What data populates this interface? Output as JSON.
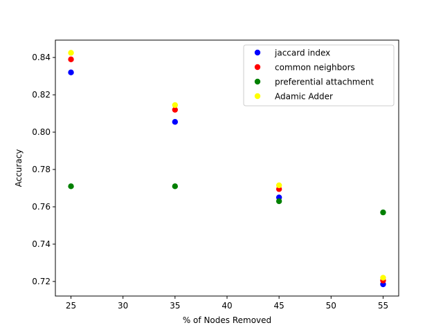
{
  "chart_data": {
    "type": "scatter",
    "title": "",
    "xlabel": "% of Nodes Removed",
    "ylabel": "Accuracy",
    "xlim": [
      23.5,
      56.5
    ],
    "ylim": [
      0.7122,
      0.8493
    ],
    "x_ticks": [
      25,
      30,
      35,
      40,
      45,
      50,
      55
    ],
    "y_ticks": [
      0.72,
      0.74,
      0.76,
      0.78,
      0.8,
      0.82,
      0.84
    ],
    "grid": false,
    "legend_position": "top-right",
    "series": [
      {
        "name": "jaccard index",
        "color": "#0000ff",
        "x": [
          25,
          35,
          45,
          55
        ],
        "y": [
          0.832,
          0.8055,
          0.765,
          0.7185
        ]
      },
      {
        "name": "common neighbors",
        "color": "#ff0000",
        "x": [
          25,
          35,
          45,
          55
        ],
        "y": [
          0.839,
          0.812,
          0.7695,
          0.7205
        ]
      },
      {
        "name": "preferential attachment",
        "color": "#008000",
        "x": [
          25,
          35,
          45,
          55
        ],
        "y": [
          0.771,
          0.771,
          0.763,
          0.757
        ]
      },
      {
        "name": "Adamic Adder",
        "color": "#ffff00",
        "x": [
          25,
          35,
          45,
          55
        ],
        "y": [
          0.8425,
          0.8145,
          0.7715,
          0.722
        ]
      }
    ]
  }
}
